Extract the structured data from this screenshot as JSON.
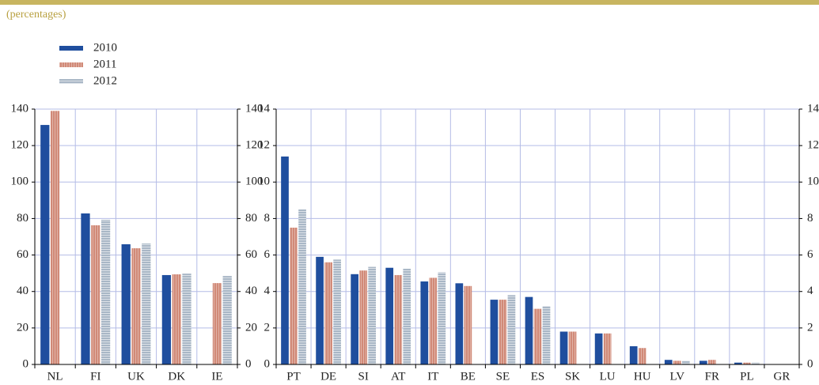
{
  "subtitle": "(percentages)",
  "chart_data": [
    {
      "type": "bar",
      "categories": [
        "NL",
        "FI",
        "UK",
        "DK",
        "IE"
      ],
      "series": [
        {
          "name": "2010",
          "color": "#1f4e9e",
          "values": [
            131.3,
            82.8,
            65.9,
            49,
            null
          ]
        },
        {
          "name": "2011",
          "color": "#d18a78",
          "values": [
            139,
            76.3,
            63.7,
            49.4,
            44.6
          ]
        },
        {
          "name": "2012",
          "color": "#a9b7c6",
          "values": [
            null,
            79.3,
            66.3,
            49.8,
            48.5
          ]
        }
      ],
      "ylim": [
        0,
        140
      ],
      "yticks": [
        0,
        20,
        40,
        60,
        80,
        100,
        120,
        140
      ],
      "grid": true
    },
    {
      "type": "bar",
      "categories": [
        "PT",
        "DE",
        "SI",
        "AT",
        "IT",
        "BE",
        "SE",
        "ES",
        "SK",
        "LU",
        "HU",
        "LV",
        "FR",
        "PL",
        "GR"
      ],
      "series": [
        {
          "name": "2010",
          "color": "#1f4e9e",
          "values": [
            11.4,
            5.9,
            4.95,
            5.3,
            4.55,
            4.45,
            3.55,
            3.7,
            1.8,
            1.7,
            1.0,
            0.25,
            0.2,
            0.1,
            null
          ]
        },
        {
          "name": "2011",
          "color": "#d18a78",
          "values": [
            7.5,
            5.6,
            5.15,
            4.9,
            4.75,
            4.3,
            3.55,
            3.05,
            1.8,
            1.7,
            0.9,
            0.2,
            0.25,
            0.1,
            null
          ]
        },
        {
          "name": "2012",
          "color": "#a9b7c6",
          "values": [
            8.5,
            5.75,
            5.35,
            5.25,
            5.05,
            null,
            3.8,
            3.2,
            null,
            null,
            null,
            0.2,
            null,
            0.1,
            null
          ]
        }
      ],
      "ylim": [
        0,
        14
      ],
      "yticks": [
        0,
        2,
        4,
        6,
        8,
        10,
        12,
        14
      ],
      "grid": true
    }
  ]
}
